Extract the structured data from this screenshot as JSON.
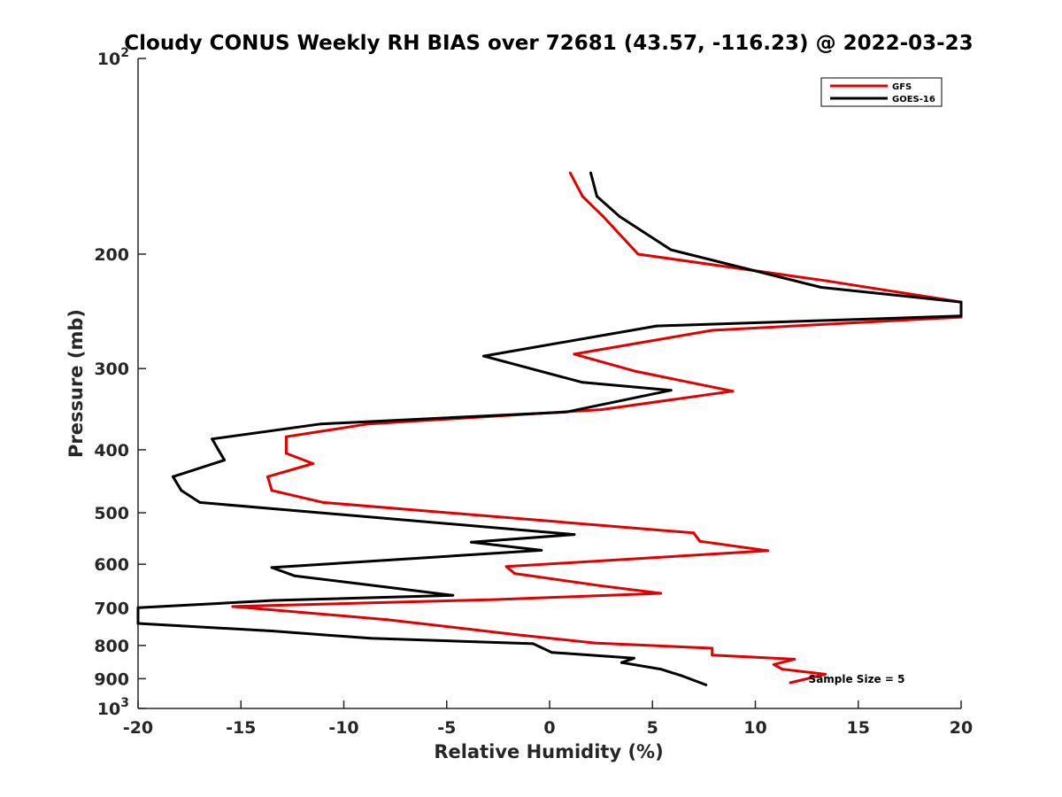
{
  "chart_data": {
    "type": "line",
    "title": "Cloudy CONUS Weekly RH BIAS over 72681 (43.57, -116.23) @ 2022-03-23",
    "xlabel": "Relative Humidity (%)",
    "ylabel": "Pressure (mb)",
    "xlim": [
      -20,
      20
    ],
    "ylim": [
      100,
      1000
    ],
    "y_scale": "log",
    "y_reversed": true,
    "grid": false,
    "x_ticks": [
      "-20",
      "-15",
      "-10",
      "-5",
      "0",
      "5",
      "10",
      "15",
      "20"
    ],
    "y_ticks": [
      {
        "value": 100,
        "label": "10",
        "sup": "2"
      },
      {
        "value": 200,
        "label": "200"
      },
      {
        "value": 300,
        "label": "300"
      },
      {
        "value": 400,
        "label": "400"
      },
      {
        "value": 500,
        "label": "500"
      },
      {
        "value": 600,
        "label": "600"
      },
      {
        "value": 700,
        "label": "700"
      },
      {
        "value": 800,
        "label": "800"
      },
      {
        "value": 900,
        "label": "900"
      },
      {
        "value": 1000,
        "label": "10",
        "sup": "3"
      }
    ],
    "legend_position": "top-right",
    "annotation": "Sample Size = 5",
    "series": [
      {
        "name": "GFS",
        "color": "#e00000",
        "points": [
          [
            1.0,
            150
          ],
          [
            1.6,
            163
          ],
          [
            2.6,
            175
          ],
          [
            4.3,
            200
          ],
          [
            13.5,
            220
          ],
          [
            20,
            237
          ],
          [
            20,
            250
          ],
          [
            7.9,
            262
          ],
          [
            1.2,
            285
          ],
          [
            4.2,
            303
          ],
          [
            8.9,
            325
          ],
          [
            2.5,
            347
          ],
          [
            -8.8,
            365
          ],
          [
            -12.8,
            382
          ],
          [
            -12.8,
            405
          ],
          [
            -11.5,
            420
          ],
          [
            -13.7,
            440
          ],
          [
            -13.5,
            462
          ],
          [
            -11.0,
            482
          ],
          [
            7.0,
            537
          ],
          [
            7.3,
            553
          ],
          [
            10.6,
            572
          ],
          [
            -2.1,
            605
          ],
          [
            -1.7,
            620
          ],
          [
            2.4,
            647
          ],
          [
            5.4,
            665
          ],
          [
            -2.7,
            680
          ],
          [
            -15.4,
            697
          ],
          [
            -7.9,
            730
          ],
          [
            -1.6,
            770
          ],
          [
            2.2,
            793
          ],
          [
            7.9,
            808
          ],
          [
            7.9,
            828
          ],
          [
            11.9,
            840
          ],
          [
            10.9,
            856
          ],
          [
            11.3,
            870
          ],
          [
            13.4,
            886
          ],
          [
            11.7,
            913
          ]
        ]
      },
      {
        "name": "GOES-16",
        "color": "#000000",
        "points": [
          [
            2.0,
            150
          ],
          [
            2.3,
            163
          ],
          [
            3.4,
            175
          ],
          [
            5.9,
            197
          ],
          [
            13.2,
            225
          ],
          [
            20,
            237
          ],
          [
            20,
            249
          ],
          [
            5.2,
            258
          ],
          [
            -3.2,
            287
          ],
          [
            1.6,
            315
          ],
          [
            5.9,
            324
          ],
          [
            0.8,
            350
          ],
          [
            -11.1,
            365
          ],
          [
            -16.4,
            385
          ],
          [
            -16.1,
            400
          ],
          [
            -15.8,
            415
          ],
          [
            -18.3,
            440
          ],
          [
            -17.9,
            462
          ],
          [
            -17.0,
            482
          ],
          [
            1.2,
            540
          ],
          [
            -3.8,
            555
          ],
          [
            -0.4,
            571
          ],
          [
            -13.5,
            607
          ],
          [
            -12.4,
            625
          ],
          [
            -8.0,
            650
          ],
          [
            -4.7,
            670
          ],
          [
            -13.4,
            682
          ],
          [
            -20,
            700
          ],
          [
            -20,
            740
          ],
          [
            -13.5,
            760
          ],
          [
            -8.7,
            780
          ],
          [
            -0.8,
            795
          ],
          [
            0.1,
            820
          ],
          [
            4.1,
            837
          ],
          [
            3.5,
            850
          ],
          [
            5.4,
            870
          ],
          [
            6.4,
            890
          ],
          [
            7.6,
            920
          ]
        ]
      }
    ]
  }
}
